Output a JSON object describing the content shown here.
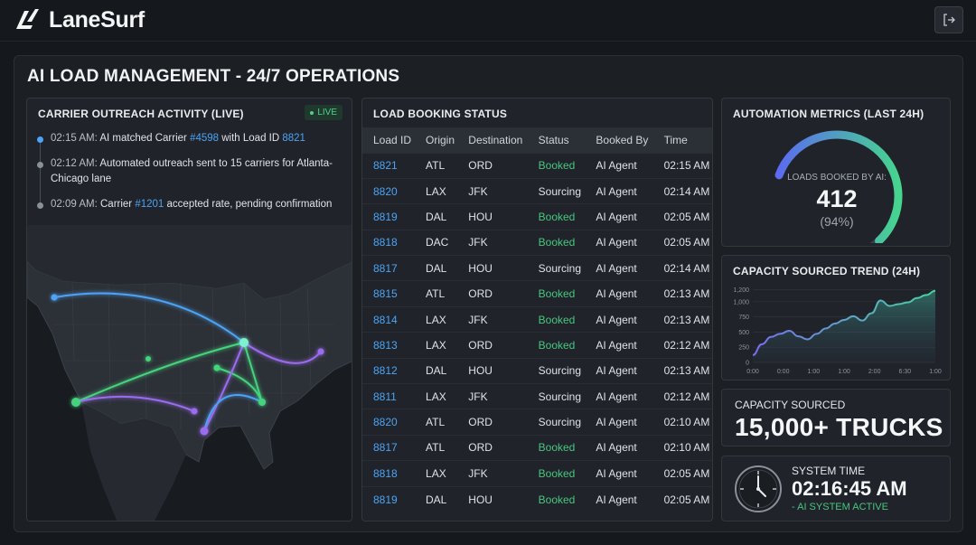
{
  "app": {
    "name": "LaneSurf",
    "logo_icon": "lanesurf-logo-icon",
    "logout_icon": "logout-icon"
  },
  "page": {
    "title": "AI LOAD MANAGEMENT - 24/7 OPERATIONS"
  },
  "outreach": {
    "title": "CARRIER OUTREACH ACTIVITY (LIVE)",
    "live_label": "LIVE",
    "items": [
      {
        "time": "02:15 AM:",
        "pre": "AI matched Carrier ",
        "link1": "#4598",
        "mid": " with Load ID ",
        "link2": "8821",
        "post": ""
      },
      {
        "time": "02:12 AM:",
        "pre": "Automated outreach sent to 15 carriers for Atlanta-Chicago lane",
        "link1": "",
        "mid": "",
        "link2": "",
        "post": ""
      },
      {
        "time": "02:09 AM:",
        "pre": "Carrier ",
        "link1": "#1201",
        "mid": " accepted rate, pending confirmation",
        "link2": "",
        "post": ""
      }
    ]
  },
  "booking": {
    "title": "LOAD BOOKING STATUS",
    "columns": [
      "Load ID",
      "Origin",
      "Destination",
      "Status",
      "Booked By",
      "Time"
    ],
    "rows": [
      [
        "8821",
        "ATL",
        "ORD",
        "Booked",
        "AI Agent",
        "02:15 AM"
      ],
      [
        "8820",
        "LAX",
        "JFK",
        "Sourcing",
        "AI Agent",
        "02:14 AM"
      ],
      [
        "8819",
        "DAL",
        "HOU",
        "Booked",
        "AI Agent",
        "02:05 AM"
      ],
      [
        "8818",
        "DAC",
        "JFK",
        "Booked",
        "AI Agent",
        "02:05 AM"
      ],
      [
        "8817",
        "DAL",
        "HOU",
        "Sourcing",
        "AI Agent",
        "02:14 AM"
      ],
      [
        "8815",
        "ATL",
        "ORD",
        "Booked",
        "AI Agent",
        "02:13 AM"
      ],
      [
        "8814",
        "LAX",
        "JFK",
        "Booked",
        "AI Agent",
        "02:13 AM"
      ],
      [
        "8813",
        "LAX",
        "ORD",
        "Booked",
        "AI Agent",
        "02:12 AM"
      ],
      [
        "8812",
        "DAL",
        "HOU",
        "Sourcing",
        "AI Agent",
        "02:13 AM"
      ],
      [
        "8811",
        "LAX",
        "JFK",
        "Sourcing",
        "AI Agent",
        "02:12 AM"
      ],
      [
        "8820",
        "ATL",
        "ORD",
        "Sourcing",
        "AI Agent",
        "02:10 AM"
      ],
      [
        "8817",
        "ATL",
        "ORD",
        "Booked",
        "AI Agent",
        "02:10 AM"
      ],
      [
        "8818",
        "LAX",
        "JFK",
        "Booked",
        "AI Agent",
        "02:05 AM"
      ],
      [
        "8819",
        "DAL",
        "HOU",
        "Booked",
        "AI Agent",
        "02:05 AM"
      ]
    ]
  },
  "metrics": {
    "title": "AUTOMATION METRICS (LAST 24H)",
    "gauge_label": "LOADS BOOKED BY AI:",
    "gauge_value": "412",
    "gauge_pct": "(94%)",
    "gauge_fraction": 0.94
  },
  "trend": {
    "title": "CAPACITY SOURCED TREND (24H)"
  },
  "chart_data": {
    "type": "area",
    "title": "CAPACITY SOURCED TREND (24H)",
    "x_ticks": [
      "0:00",
      "0:00",
      "1:00",
      "1:00",
      "2:00",
      "6:30",
      "1:00"
    ],
    "y_ticks": [
      "0",
      "250",
      "500",
      "750",
      "1,000",
      "1,200"
    ],
    "ylim": [
      0,
      1250
    ],
    "values": [
      120,
      300,
      420,
      470,
      520,
      430,
      380,
      470,
      560,
      640,
      700,
      760,
      690,
      810,
      1020,
      930,
      960,
      990,
      1060,
      1110,
      1180
    ],
    "grid": true
  },
  "capacity": {
    "label": "CAPACITY SOURCED",
    "value": "15,000+ TRUCKS"
  },
  "systime": {
    "label": "SYSTEM TIME",
    "value": "02:16:45 AM",
    "status": "- AI SYSTEM ACTIVE",
    "clock_icon": "clock-icon"
  },
  "colors": {
    "accent_blue": "#4da3f5",
    "accent_green": "#49c67f",
    "gauge_start": "#5b6cf0",
    "gauge_end": "#46d48f"
  }
}
